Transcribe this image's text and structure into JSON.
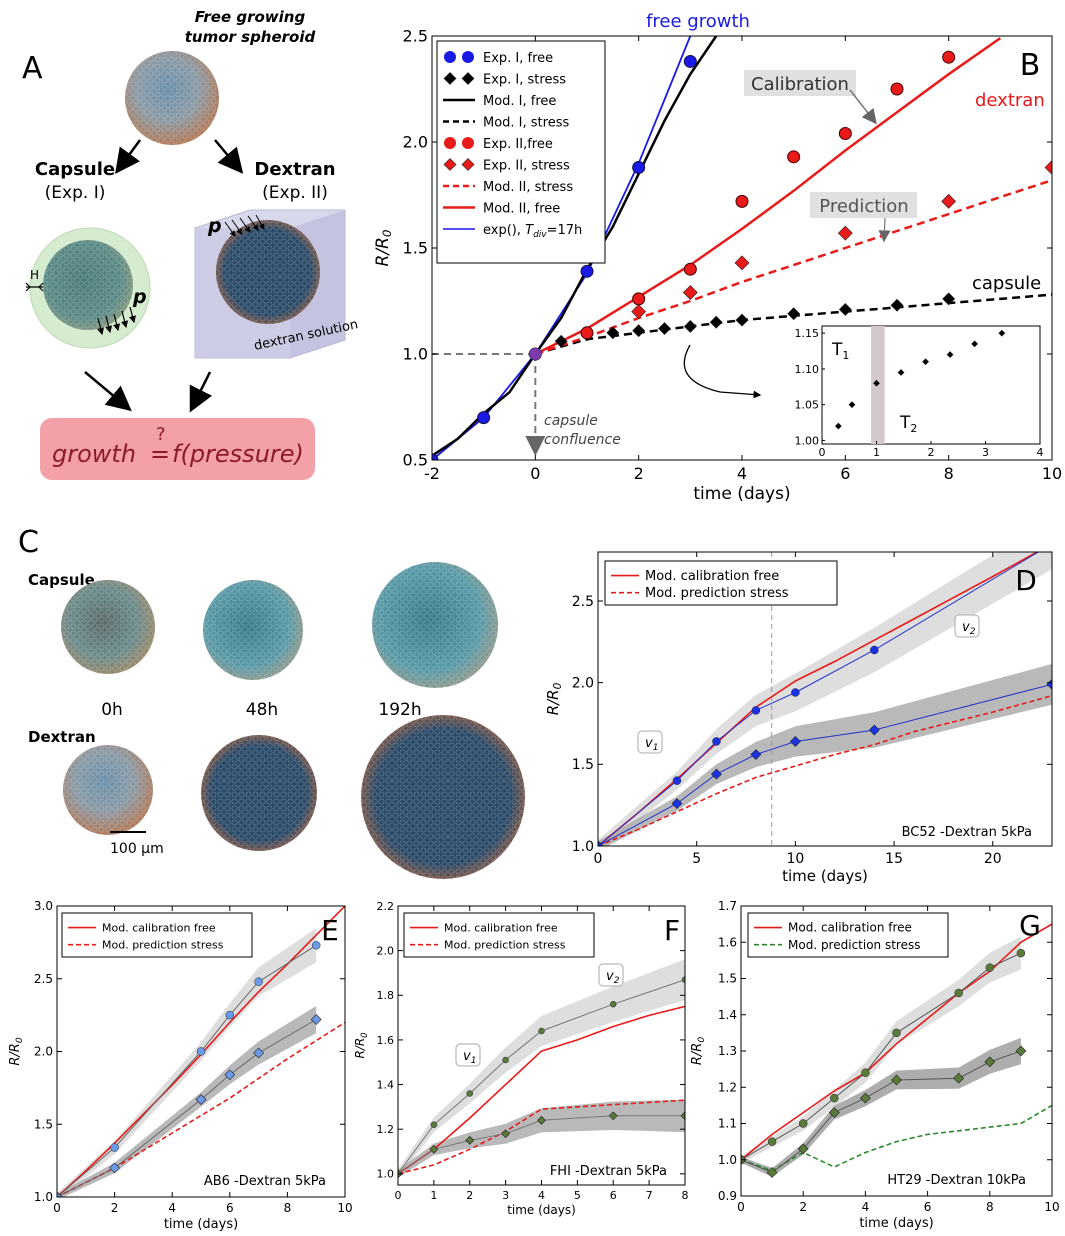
{
  "panelA": {
    "letter": "A",
    "title": "Free growing\ntumor spheroid",
    "capsule": "Capsule",
    "capsule_exp": "(Exp. I)",
    "dextran": "Dextran",
    "dextran_exp": "(Exp. II)",
    "H": "H",
    "p1": "p",
    "p2": "p",
    "dextran_solution": "dextran solution",
    "growth_formula_lhs": "growth",
    "growth_formula_q": "?",
    "growth_formula_rhs": "f(pressure)"
  },
  "panelC": {
    "letter": "C",
    "capsule": "Capsule",
    "dextran": "Dextran",
    "times": [
      "0h",
      "48h",
      "192h"
    ],
    "scalebar": "100 µm"
  },
  "colors": {
    "blue": "#1a1ae6",
    "red": "#e81a1a",
    "black": "#000000",
    "gray_band": "#cfcfcf",
    "dark_band": "#9a9a9a",
    "olive": "#5a7a3a",
    "green_dash": "#2a8a2a",
    "lightblue": "#6a9ae8",
    "formula_bg": "#f4a0a8",
    "formula_text": "#8b1a2a"
  },
  "chart_data": [
    {
      "panel": "B",
      "type": "line",
      "xlabel": "time (days)",
      "ylabel": "R/R0",
      "xlim": [
        -2,
        10
      ],
      "ylim": [
        0.5,
        2.5
      ],
      "xticks": [
        "-2",
        "0",
        "2",
        "4",
        "6",
        "8",
        "10"
      ],
      "yticks": [
        "0.5",
        "1.0",
        "1.5",
        "2.0",
        "2.5"
      ],
      "legend": [
        "Exp. I, free",
        "Exp. I, stress",
        "Mod. I, free",
        "Mod. I, stress",
        "Exp. II,free",
        "Exp. II, stress",
        "Mod. II, stress",
        "Mod. II, free",
        "exp(), Tdiv=17h"
      ],
      "annotations": {
        "free_growth": "free growth",
        "calibration": "Calibration",
        "dextran": "dextran",
        "prediction": "Prediction",
        "capsule": "capsule",
        "capsule_confluence": "capsule\nconfluence"
      },
      "series": {
        "exp1_free": {
          "x": [
            -2,
            -1,
            0,
            1,
            2,
            3
          ],
          "y": [
            0.5,
            0.7,
            1.0,
            1.39,
            1.88,
            2.38
          ]
        },
        "exp1_stress": {
          "x": [
            0,
            0.5,
            1,
            1.5,
            2,
            2.5,
            3,
            3.5,
            4,
            5,
            6,
            7,
            8
          ],
          "y": [
            1.0,
            1.06,
            1.09,
            1.1,
            1.11,
            1.12,
            1.13,
            1.15,
            1.16,
            1.19,
            1.21,
            1.23,
            1.26
          ]
        },
        "mod1_free": {
          "x": [
            -2,
            -1.5,
            -1,
            -0.5,
            0,
            0.5,
            1,
            1.5,
            2,
            2.5,
            3,
            3.5
          ],
          "y": [
            0.52,
            0.6,
            0.72,
            0.82,
            1.0,
            1.17,
            1.4,
            1.6,
            1.85,
            2.1,
            2.32,
            2.5
          ]
        },
        "mod1_stress": {
          "x": [
            0,
            1,
            2,
            3,
            4,
            5,
            6,
            7,
            8,
            9,
            10
          ],
          "y": [
            1.0,
            1.07,
            1.1,
            1.13,
            1.16,
            1.18,
            1.2,
            1.22,
            1.24,
            1.26,
            1.28
          ]
        },
        "exp2_free": {
          "x": [
            1,
            2,
            3,
            4,
            5,
            6,
            7,
            8
          ],
          "y": [
            1.1,
            1.26,
            1.4,
            1.72,
            1.93,
            2.04,
            2.25,
            2.4
          ]
        },
        "exp2_stress": {
          "x": [
            2,
            3,
            4,
            6,
            8,
            10
          ],
          "y": [
            1.2,
            1.29,
            1.43,
            1.57,
            1.72,
            1.88
          ]
        },
        "mod2_stress": {
          "x": [
            0,
            1,
            2,
            3,
            4,
            5,
            6,
            7,
            8,
            9,
            10
          ],
          "y": [
            1.0,
            1.08,
            1.17,
            1.25,
            1.34,
            1.42,
            1.5,
            1.58,
            1.66,
            1.74,
            1.82
          ]
        },
        "mod2_free": {
          "x": [
            0,
            1,
            2,
            3,
            4,
            5,
            6,
            7,
            8,
            9
          ],
          "y": [
            1.0,
            1.12,
            1.27,
            1.42,
            1.59,
            1.77,
            1.96,
            2.14,
            2.32,
            2.49
          ]
        },
        "exp_tdiv": {
          "x": [
            -2,
            -1,
            0,
            1,
            2,
            2.5,
            3,
            3.3
          ],
          "y": [
            0.5,
            0.7,
            1.0,
            1.38,
            1.9,
            2.2,
            2.5,
            2.7
          ]
        }
      },
      "inset": {
        "xlim": [
          0,
          4
        ],
        "ylim": [
          1.0,
          1.15
        ],
        "xticks": [
          "0",
          "1",
          "2",
          "3",
          "4"
        ],
        "yticks": [
          "1.00",
          "1.05",
          "1.10",
          "1.15"
        ],
        "labels": [
          "T1",
          "T2"
        ],
        "x": [
          0.3,
          0.55,
          1.0,
          1.45,
          1.9,
          2.35,
          2.8,
          3.3
        ],
        "y": [
          1.02,
          1.05,
          1.08,
          1.095,
          1.11,
          1.12,
          1.135,
          1.15
        ]
      }
    },
    {
      "panel": "D",
      "type": "line",
      "xlabel": "time (days)",
      "ylabel": "R/R0",
      "xlim": [
        0,
        23
      ],
      "ylim": [
        1.0,
        2.8
      ],
      "xticks": [
        "0",
        "5",
        "10",
        "15",
        "20"
      ],
      "yticks": [
        "1.0",
        "1.5",
        "2.0",
        "2.5"
      ],
      "legend": [
        "Mod. calibration free",
        "Mod. prediction stress"
      ],
      "label": "BC52 -Dextran 5kPa",
      "v_labels": [
        "v1",
        "v2"
      ],
      "series": {
        "exp_free": {
          "x": [
            0,
            4,
            6,
            8,
            10,
            14,
            23
          ],
          "y": [
            1.0,
            1.4,
            1.64,
            1.83,
            1.94,
            2.2,
            2.85
          ]
        },
        "exp_stress": {
          "x": [
            0,
            4,
            6,
            8,
            10,
            14,
            23
          ],
          "y": [
            1.0,
            1.26,
            1.44,
            1.56,
            1.64,
            1.71,
            1.99
          ]
        },
        "mod_free": {
          "x": [
            0,
            2,
            4,
            6,
            8,
            10,
            12,
            14,
            16,
            18,
            20,
            23
          ],
          "y": [
            1.0,
            1.2,
            1.41,
            1.63,
            1.85,
            2.01,
            2.13,
            2.26,
            2.39,
            2.52,
            2.65,
            2.85
          ]
        },
        "mod_stress": {
          "x": [
            0,
            2,
            4,
            6,
            8,
            10,
            12,
            14,
            16,
            18,
            20,
            23
          ],
          "y": [
            1.0,
            1.1,
            1.21,
            1.32,
            1.42,
            1.49,
            1.56,
            1.62,
            1.7,
            1.76,
            1.82,
            1.92
          ]
        }
      }
    },
    {
      "panel": "E",
      "type": "line",
      "xlabel": "time (days)",
      "ylabel": "R/R0",
      "xlim": [
        0,
        10
      ],
      "ylim": [
        1.0,
        3.0
      ],
      "xticks": [
        "0",
        "2",
        "4",
        "6",
        "8",
        "10"
      ],
      "yticks": [
        "1.0",
        "1.5",
        "2.0",
        "2.5",
        "3.0"
      ],
      "legend": [
        "Mod. calibration free",
        "Mod. prediction stress"
      ],
      "label": "AB6 -Dextran 5kPa",
      "series": {
        "exp_free": {
          "x": [
            0,
            2,
            5,
            6,
            7,
            9
          ],
          "y": [
            1.0,
            1.34,
            2.0,
            2.25,
            2.48,
            2.73
          ]
        },
        "exp_stress": {
          "x": [
            0,
            2,
            5,
            6,
            7,
            9
          ],
          "y": [
            1.0,
            1.2,
            1.67,
            1.84,
            1.99,
            2.22
          ]
        },
        "mod_free": {
          "x": [
            0,
            1,
            2,
            3,
            4,
            5,
            6,
            7,
            8,
            9,
            10
          ],
          "y": [
            1.0,
            1.18,
            1.37,
            1.57,
            1.77,
            1.98,
            2.2,
            2.41,
            2.6,
            2.8,
            3.0
          ]
        },
        "mod_stress": {
          "x": [
            0,
            2,
            4,
            6,
            8,
            10
          ],
          "y": [
            1.0,
            1.2,
            1.44,
            1.68,
            1.95,
            2.2
          ]
        }
      }
    },
    {
      "panel": "F",
      "type": "line",
      "xlabel": "time (days)",
      "ylabel": "R/R0",
      "xlim": [
        0,
        8
      ],
      "ylim": [
        0.95,
        2.2
      ],
      "xticks": [
        "0",
        "1",
        "2",
        "3",
        "4",
        "5",
        "6",
        "7",
        "8"
      ],
      "yticks": [
        "1.0",
        "1.2",
        "1.4",
        "1.6",
        "1.8",
        "2.0",
        "2.2"
      ],
      "legend": [
        "Mod. calibration free",
        "Mod. prediction stress"
      ],
      "label": "FHI -Dextran 5kPa",
      "v_labels": [
        "v1",
        "v2"
      ],
      "series": {
        "exp_free": {
          "x": [
            0,
            1,
            2,
            3,
            4,
            6,
            8
          ],
          "y": [
            1.0,
            1.22,
            1.36,
            1.51,
            1.64,
            1.76,
            1.87
          ]
        },
        "exp_stress": {
          "x": [
            0,
            1,
            2,
            3,
            4,
            6,
            8
          ],
          "y": [
            1.0,
            1.11,
            1.15,
            1.18,
            1.24,
            1.26,
            1.26
          ]
        },
        "mod_free": {
          "x": [
            0,
            1,
            2,
            3,
            4,
            5,
            6,
            7,
            8
          ],
          "y": [
            1.0,
            1.11,
            1.25,
            1.4,
            1.55,
            1.6,
            1.66,
            1.71,
            1.75
          ]
        },
        "mod_stress": {
          "x": [
            0,
            1,
            2,
            3,
            4,
            5,
            6,
            7,
            8
          ],
          "y": [
            1.0,
            1.04,
            1.11,
            1.19,
            1.29,
            1.3,
            1.31,
            1.32,
            1.33
          ]
        }
      }
    },
    {
      "panel": "G",
      "type": "line",
      "xlabel": "time (days)",
      "ylabel": "R/R0",
      "xlim": [
        0,
        10
      ],
      "ylim": [
        0.9,
        1.7
      ],
      "xticks": [
        "0",
        "2",
        "4",
        "6",
        "8",
        "10"
      ],
      "yticks": [
        "0.9",
        "1.0",
        "1.1",
        "1.2",
        "1.3",
        "1.4",
        "1.5",
        "1.6",
        "1.7"
      ],
      "legend": [
        "Mod. calibration free",
        "Mod. prediction stress"
      ],
      "label": "HT29 -Dextran 10kPa",
      "series": {
        "exp_free": {
          "x": [
            0,
            1,
            2,
            3,
            4,
            5,
            7,
            8,
            9
          ],
          "y": [
            1.0,
            1.05,
            1.1,
            1.17,
            1.24,
            1.35,
            1.46,
            1.53,
            1.57
          ]
        },
        "exp_stress": {
          "x": [
            0,
            1,
            2,
            3,
            4,
            5,
            7,
            8,
            9
          ],
          "y": [
            1.0,
            0.965,
            1.03,
            1.13,
            1.17,
            1.22,
            1.225,
            1.27,
            1.3
          ]
        },
        "mod_free": {
          "x": [
            0,
            1,
            2,
            3,
            4,
            5,
            6,
            7,
            8,
            9,
            10
          ],
          "y": [
            1.0,
            1.07,
            1.13,
            1.19,
            1.24,
            1.32,
            1.39,
            1.46,
            1.52,
            1.6,
            1.65
          ]
        },
        "mod_stress": {
          "x": [
            0,
            1,
            2,
            3,
            4,
            5,
            6,
            7,
            8,
            9,
            10
          ],
          "y": [
            1.0,
            0.97,
            1.02,
            0.98,
            1.02,
            1.05,
            1.07,
            1.08,
            1.09,
            1.1,
            1.15
          ]
        }
      }
    }
  ]
}
